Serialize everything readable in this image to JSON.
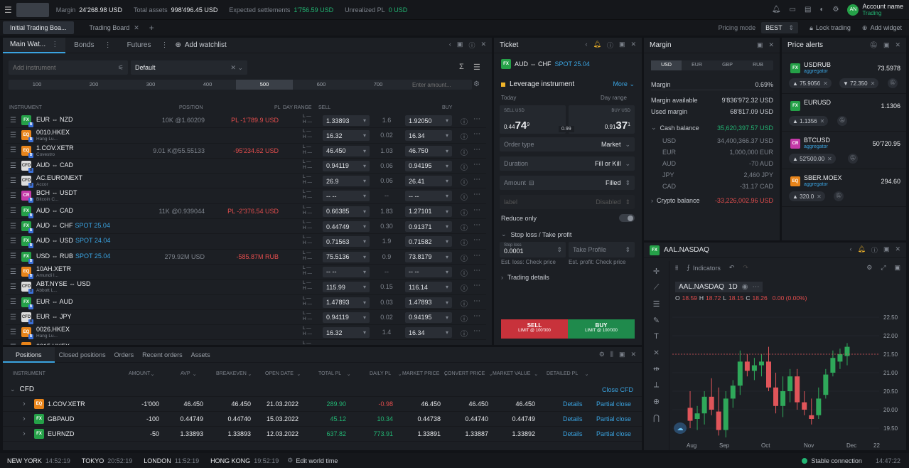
{
  "topbar": {
    "margin_label": "Margin",
    "margin_value": "24'268.98 USD",
    "assets_label": "Total assets",
    "assets_value": "998'496.45 USD",
    "settle_label": "Expected settlements",
    "settle_value": "1'756.59 USD",
    "upl_label": "Unrealized PL",
    "upl_value": "0 USD",
    "account_initials": "AN",
    "account_name": "Account name",
    "account_mode": "Trading"
  },
  "tabs": {
    "board1": "Initial Trading Boa...",
    "board2": "Trading Board",
    "pricing_label": "Pricing mode",
    "pricing_value": "BEST",
    "lock": "Lock trading",
    "add_widget": "Add widget"
  },
  "watchlist": {
    "tabs": [
      "Main Wat...",
      "Bonds",
      "Futures"
    ],
    "add": "Add watchlist",
    "search_placeholder": "Add instrument",
    "list": "Default",
    "amounts": [
      "100",
      "200",
      "300",
      "400",
      "500",
      "600",
      "700"
    ],
    "amount_placeholder": "Enter amount...",
    "headers": {
      "instrument": "INSTRUMENT",
      "position": "POSITION",
      "pl": "PL",
      "day": "DAY RANGE",
      "sell": "SELL",
      "buy": "BUY"
    },
    "rows": [
      {
        "t": "FX",
        "name": "EUR ⇔ NZD",
        "sub": "",
        "pos": "10K @1.60209",
        "pl": "PL -1'789.9 USD",
        "sell": "1.33893",
        "spread": "1.6",
        "buy": "1.92050"
      },
      {
        "t": "EQ",
        "name": "0010.HKEX",
        "sub": "Hang Lu...",
        "pos": "",
        "pl": "",
        "sell": "16.32",
        "spread": "0.02",
        "buy": "16.34"
      },
      {
        "t": "EQ",
        "name": "1.COV.XETR",
        "sub": "Covestro",
        "pos": "9.01 K@55.55133",
        "pl": "-95'234.62 USD",
        "sell": "46.450",
        "spread": "1.03",
        "buy": "46.750"
      },
      {
        "t": "CFD",
        "name": "AUD ⇔ CAD",
        "sub": "",
        "pos": "",
        "pl": "",
        "sell": "0.94119",
        "spread": "0.06",
        "buy": "0.94195"
      },
      {
        "t": "CFD",
        "name": "AC.EURONEXT",
        "sub": "Accor",
        "pos": "",
        "pl": "",
        "sell": "26.9",
        "spread": "0.06",
        "buy": "26.41"
      },
      {
        "t": "CR",
        "name": "BCH ⇔ USDT",
        "sub": "Bitcoin C...",
        "pos": "",
        "pl": "",
        "sell": "-- --",
        "spread": "--",
        "buy": "-- --"
      },
      {
        "t": "FX",
        "name": "AUD ⇔ CAD",
        "sub": "",
        "pos": "11K @0.939044",
        "pl": "PL -2'376.54 USD",
        "sell": "0.66385",
        "spread": "1.83",
        "buy": "1.27101"
      },
      {
        "t": "FX",
        "name": "AUD ⇔ CHF",
        "spot": "SPOT 25.04",
        "pos": "",
        "pl": "",
        "sell": "0.44749",
        "spread": "0.30",
        "buy": "0.91371"
      },
      {
        "t": "FX",
        "name": "AUD ⇔ USD",
        "spot": "SPOT 24.04",
        "pos": "",
        "pl": "",
        "sell": "0.71563",
        "spread": "1.9",
        "buy": "0.71582"
      },
      {
        "t": "FX",
        "name": "USD ⇔ RUB",
        "spot": "SPOT 25.04",
        "pos": "279.92M USD",
        "pl": "-585.87M RUB",
        "sell": "75.5136",
        "spread": "0.9",
        "buy": "73.8179"
      },
      {
        "t": "EQ",
        "name": "10AH.XETR",
        "sub": "Amundi I...",
        "pos": "",
        "pl": "",
        "sell": "-- --",
        "spread": "--",
        "buy": "-- --"
      },
      {
        "t": "CFD",
        "name": "ABT.NYSE ⇔ USD",
        "sub": "Abbott L...",
        "pos": "",
        "pl": "",
        "sell": "115.99",
        "spread": "0.15",
        "buy": "116.14"
      },
      {
        "t": "FX",
        "name": "EUR ⇔ AUD",
        "sub": "",
        "pos": "",
        "pl": "",
        "sell": "1.47893",
        "spread": "0.03",
        "buy": "1.47893"
      },
      {
        "t": "CFD",
        "name": "EUR ⇔ JPY",
        "sub": "",
        "pos": "",
        "pl": "",
        "sell": "0.94119",
        "spread": "0.02",
        "buy": "0.94195"
      },
      {
        "t": "EQ",
        "name": "0026.HKEX",
        "sub": "Hang Lu...",
        "pos": "",
        "pl": "",
        "sell": "16.32",
        "spread": "1.4",
        "buy": "16.34"
      },
      {
        "t": "EQ",
        "name": "0015.HKEX",
        "sub": "",
        "pos": "",
        "pl": "",
        "sell": "",
        "spread": "",
        "buy": ""
      }
    ]
  },
  "ticket": {
    "title": "Ticket",
    "instrument": "AUD ⇔ CHF",
    "spot": "SPOT 25.04",
    "leverage": "Leverage instrument",
    "more": "More",
    "today": "Today",
    "dayrange": "Day range",
    "sell_label": "SELL USD",
    "buy_label": "BUY USD",
    "sell_small": "0.44",
    "sell_big": "74",
    "sell_sup": "9",
    "buy_small": "0.91",
    "buy_big": "37",
    "buy_sup": "1",
    "spread": "0.99",
    "order_type": "Order type",
    "order_type_val": "Market",
    "duration": "Duration",
    "duration_val": "Fill or Kill",
    "amount": "Amount",
    "amount_val": "Filled",
    "label_ph": "label",
    "label_val": "Disabled",
    "reduce": "Reduce only",
    "sltp": "Stop loss / Take profit",
    "sl_label": "Stop loss",
    "sl_val": "0.0001",
    "tp_label": "Take Profile",
    "est_loss": "Est. loss: Check price",
    "est_profit": "Est. profit: Check price",
    "details": "Trading details",
    "sell_btn": "SELL",
    "sell_sub": "LIMIT @ 100'000",
    "buy_btn": "BUY",
    "buy_sub": "LIMIT @ 100'000"
  },
  "margin": {
    "title": "Margin",
    "tabs": [
      "USD",
      "EUR",
      "GBP",
      "RUB"
    ],
    "rows": [
      {
        "k": "Margin",
        "v": "0.69%"
      },
      {
        "k": "Margin available",
        "v": "9'836'972.32 USD"
      },
      {
        "k": "Used margin",
        "v": "68'817.09 USD"
      }
    ],
    "cash_label": "Cash balance",
    "cash_val": "35,620,397.57 USD",
    "cash_rows": [
      {
        "k": "USD",
        "v": "34,400,366.37 USD"
      },
      {
        "k": "EUR",
        "v": "1,000,000 EUR"
      },
      {
        "k": "AUD",
        "v": "-70 AUD"
      },
      {
        "k": "JPY",
        "v": "2,460 JPY"
      },
      {
        "k": "CAD",
        "v": "-31.17 CAD"
      }
    ],
    "crypto_label": "Crypto balance",
    "crypto_val": "-33,226,002.96 USD"
  },
  "alerts": {
    "title": "Price alerts",
    "items": [
      {
        "t": "FX",
        "name": "USDRUB",
        "sub": "aggregator",
        "price": "73.5978",
        "chips": [
          "▲ 75.9056",
          "▼ 72.350"
        ]
      },
      {
        "t": "FX",
        "name": "EURUSD",
        "sub": "",
        "price": "1.1306",
        "chips": [
          "▲ 1.1356"
        ]
      },
      {
        "t": "CR",
        "name": "BTCUSD",
        "sub": "aggregator",
        "price": "50'720.95",
        "chips": [
          "▲ 52'500.00"
        ]
      },
      {
        "t": "EQ",
        "name": "SBER.MOEX",
        "sub": "aggregator",
        "price": "294.60",
        "chips": [
          "▲ 320.0"
        ]
      }
    ]
  },
  "chart_panel": {
    "title": "AAL.NASDAQ",
    "indicators": "Indicators",
    "symbol": "AAL.NASDAQ",
    "tf": "1D",
    "o_label": "O",
    "o": "18.59",
    "h_label": "H",
    "h": "18.72",
    "l_label": "L",
    "l": "18.15",
    "c_label": "C",
    "c": "18.26",
    "chg": "0.00 (0.00%)"
  },
  "chart_data": {
    "type": "candlestick",
    "ylim": [
      19.25,
      22.75
    ],
    "y_ticks": [
      "22.50",
      "22.00",
      "21.50",
      "21.00",
      "20.50",
      "20.00",
      "19.50"
    ],
    "x_ticks": [
      "Aug",
      "Sep",
      "Oct",
      "Nov",
      "Dec",
      "22"
    ],
    "candles": [
      {
        "o": 20.05,
        "h": 20.5,
        "l": 19.5,
        "c": 19.7
      },
      {
        "o": 19.75,
        "h": 20.1,
        "l": 19.45,
        "c": 19.9
      },
      {
        "o": 19.9,
        "h": 20.5,
        "l": 19.6,
        "c": 20.35
      },
      {
        "o": 20.35,
        "h": 20.85,
        "l": 19.85,
        "c": 20.0
      },
      {
        "o": 19.95,
        "h": 20.6,
        "l": 19.3,
        "c": 19.45
      },
      {
        "o": 19.45,
        "h": 20.5,
        "l": 19.25,
        "c": 20.3
      },
      {
        "o": 20.3,
        "h": 20.8,
        "l": 20.05,
        "c": 20.65
      },
      {
        "o": 20.65,
        "h": 21.6,
        "l": 20.4,
        "c": 21.3
      },
      {
        "o": 21.3,
        "h": 21.5,
        "l": 20.9,
        "c": 21.05
      },
      {
        "o": 21.05,
        "h": 21.4,
        "l": 20.8,
        "c": 21.2
      },
      {
        "o": 21.2,
        "h": 21.5,
        "l": 20.9,
        "c": 21.3
      },
      {
        "o": 21.3,
        "h": 21.7,
        "l": 20.5,
        "c": 20.6
      },
      {
        "o": 20.6,
        "h": 21.0,
        "l": 19.9,
        "c": 20.1
      },
      {
        "o": 20.1,
        "h": 20.9,
        "l": 19.8,
        "c": 20.5
      },
      {
        "o": 20.5,
        "h": 21.1,
        "l": 20.2,
        "c": 20.9
      },
      {
        "o": 20.9,
        "h": 21.1,
        "l": 20.0,
        "c": 20.2
      },
      {
        "o": 20.2,
        "h": 20.5,
        "l": 19.85,
        "c": 20.0
      },
      {
        "o": 19.85,
        "h": 20.3,
        "l": 19.6,
        "c": 19.75
      },
      {
        "o": 19.85,
        "h": 20.6,
        "l": 19.75,
        "c": 20.3
      },
      {
        "o": 20.4,
        "h": 21.1,
        "l": 20.3,
        "c": 20.95
      },
      {
        "o": 21.0,
        "h": 21.6,
        "l": 20.9,
        "c": 21.4
      },
      {
        "o": 21.3,
        "h": 21.65,
        "l": 21.1,
        "c": 21.5
      },
      {
        "o": 21.45,
        "h": 21.8,
        "l": 21.2,
        "c": 21.7
      }
    ],
    "price_line": 21.5
  },
  "positions": {
    "tabs": [
      "Positions",
      "Closed positions",
      "Orders",
      "Recent orders",
      "Assets"
    ],
    "headers": [
      "INSTRUMENT",
      "AMOUNT",
      "AVP",
      "BREAKEVEN",
      "OPEN DATE",
      "TOTAL PL",
      "DAILY PL",
      "MARKET PRICE",
      "CONVERT PRICE",
      "MARKET VALUE",
      "DETAILED PL"
    ],
    "group": "CFD",
    "close_group": "Close CFD",
    "rows": [
      {
        "t": "EQ",
        "name": "1.COV.XETR",
        "amount": "-1'000",
        "avp": "46.450",
        "be": "46.450",
        "date": "21.03.2022",
        "tpl": "289.90",
        "dpl": "-0.98",
        "mp": "46.450",
        "cp": "46.450",
        "mv": "46.450",
        "details": "Details",
        "close": "Partial close"
      },
      {
        "t": "FX",
        "name": "GBPAUD",
        "amount": "-100",
        "avp": "0.44749",
        "be": "0.44740",
        "date": "15.03.2022",
        "tpl": "45.12",
        "dpl": "10.34",
        "mp": "0.44738",
        "cp": "0.44740",
        "mv": "0.44749",
        "details": "Details",
        "close": "Partial close"
      },
      {
        "t": "FX",
        "name": "EURNZD",
        "amount": "-50",
        "avp": "1.33893",
        "be": "1.33893",
        "date": "12.03.2022",
        "tpl": "637.82",
        "dpl": "773.91",
        "mp": "1.33891",
        "cp": "1.33887",
        "mv": "1.33892",
        "details": "Details",
        "close": "Partial close"
      }
    ]
  },
  "statusbar": {
    "clocks": [
      {
        "city": "NEW YORK",
        "time": "14:52:19"
      },
      {
        "city": "TOKYO",
        "time": "20:52:19"
      },
      {
        "city": "LONDON",
        "time": "11:52:19"
      },
      {
        "city": "HONG KONG",
        "time": "19:52:19"
      }
    ],
    "edit": "Edit world time",
    "connection": "Stable connection",
    "time": "14:47:22"
  }
}
